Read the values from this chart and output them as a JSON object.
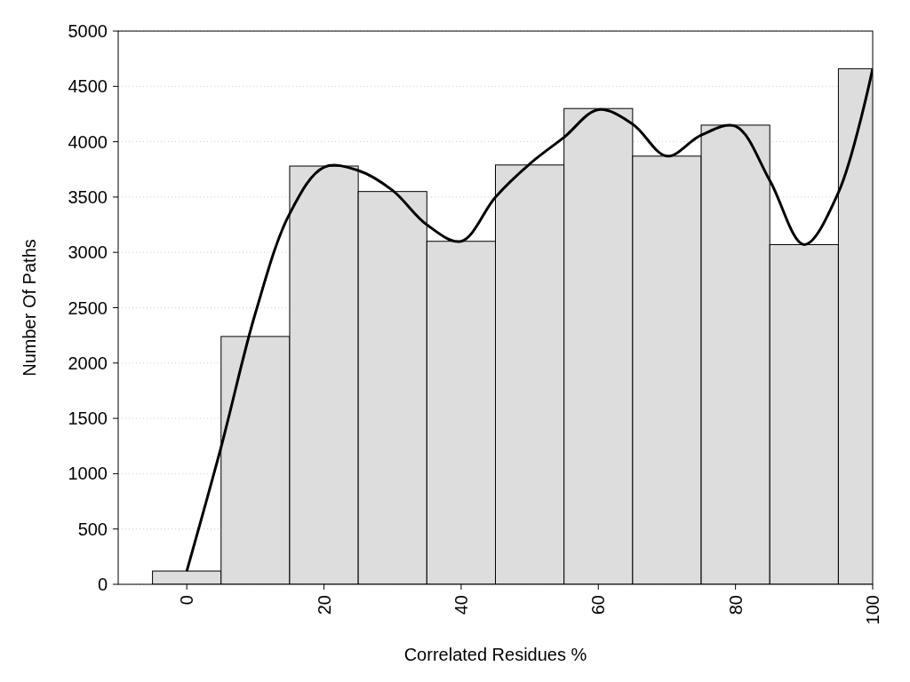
{
  "chart_data": {
    "type": "histogram",
    "xlabel": "Correlated Residues %",
    "ylabel": "Number Of Paths",
    "bins": [
      -5,
      5,
      15,
      25,
      35,
      45,
      55,
      65,
      75,
      85,
      95,
      105
    ],
    "values": [
      120,
      2240,
      3780,
      3550,
      3100,
      3790,
      4300,
      3870,
      4150,
      3070,
      4660
    ],
    "color": "#dddddd",
    "series": [
      {
        "type": "line",
        "color": "#000000",
        "x": [
          0,
          5,
          10,
          15,
          20,
          25,
          30,
          35,
          40,
          45,
          50,
          55,
          60,
          65,
          70,
          75,
          80,
          85,
          90,
          95,
          100
        ],
        "values": [
          120,
          1240,
          2450,
          3350,
          3770,
          3740,
          3560,
          3250,
          3100,
          3500,
          3800,
          4040,
          4290,
          4160,
          3870,
          4060,
          4140,
          3650,
          3070,
          3540,
          4660
        ]
      }
    ],
    "xlim": [
      -10,
      100
    ],
    "xticks": [
      0,
      20,
      40,
      60,
      80,
      100
    ],
    "ylim": [
      0,
      5000
    ],
    "yticks": [
      0,
      500,
      1000,
      1500,
      2000,
      2500,
      3000,
      3500,
      4000,
      4500,
      5000
    ],
    "grid": "y"
  }
}
